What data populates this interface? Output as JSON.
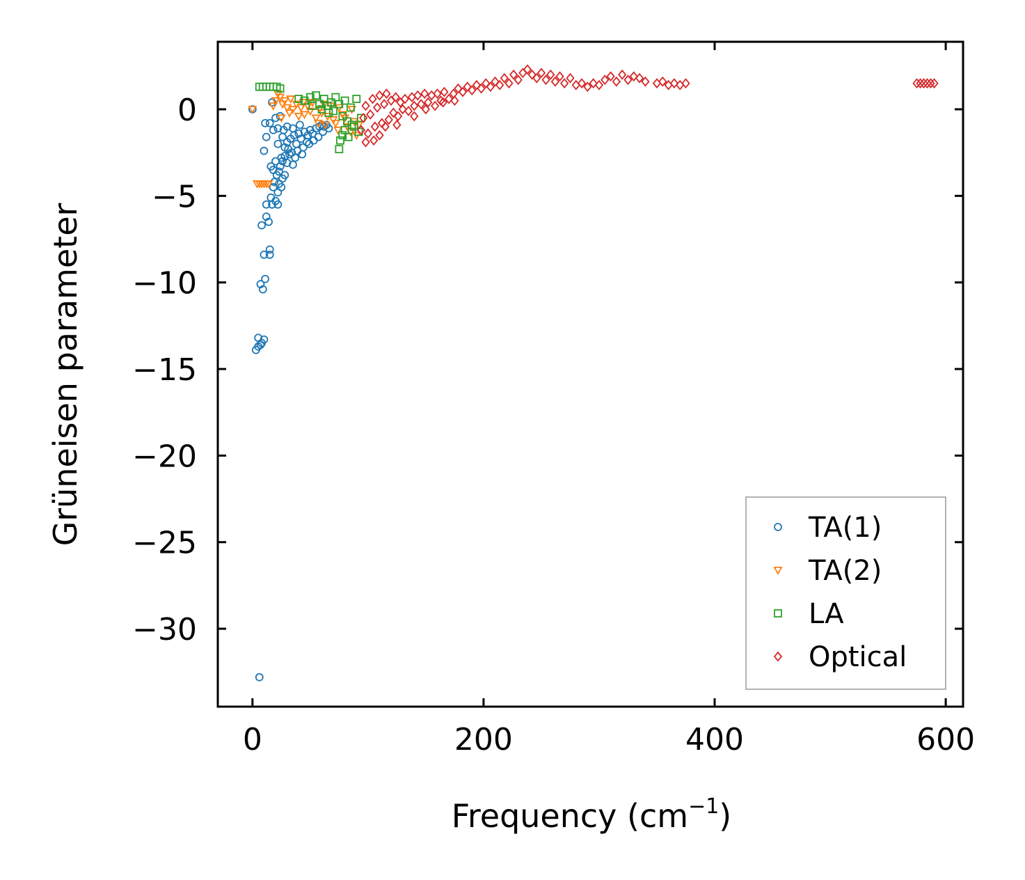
{
  "chart_data": {
    "type": "scatter",
    "title": "",
    "xlabel": "Frequency (cm",
    "xlabel_sup": "−1",
    "xlabel_suffix": ")",
    "ylabel": "Grüneisen parameter",
    "xlim": [
      -30,
      615
    ],
    "ylim": [
      -34.5,
      3.9
    ],
    "grid": false,
    "legend_position": "lower-right",
    "x_ticks": [
      {
        "value": 0,
        "label": "0"
      },
      {
        "value": 200,
        "label": "200"
      },
      {
        "value": 400,
        "label": "400"
      },
      {
        "value": 600,
        "label": "600"
      }
    ],
    "y_ticks": [
      {
        "value": 0,
        "label": "0"
      },
      {
        "value": -5,
        "label": "−5"
      },
      {
        "value": -10,
        "label": "−10"
      },
      {
        "value": -15,
        "label": "−15"
      },
      {
        "value": -20,
        "label": "−20"
      },
      {
        "value": -25,
        "label": "−25"
      },
      {
        "value": -30,
        "label": "−30"
      }
    ],
    "series": [
      {
        "name": "TA(1)",
        "marker": "circle",
        "color": "#1f77b4",
        "points": [
          [
            0,
            0
          ],
          [
            6,
            -32.8
          ],
          [
            3,
            -13.9
          ],
          [
            5,
            -13.7
          ],
          [
            7,
            -13.6
          ],
          [
            8,
            -13.5
          ],
          [
            10,
            -13.3
          ],
          [
            5,
            -13.2
          ],
          [
            7,
            -10.1
          ],
          [
            9,
            -10.4
          ],
          [
            11,
            -9.8
          ],
          [
            10,
            -8.4
          ],
          [
            15,
            -8.4
          ],
          [
            15,
            -8.1
          ],
          [
            8,
            -6.7
          ],
          [
            14,
            -6.5
          ],
          [
            12,
            -6.2
          ],
          [
            12,
            -5.5
          ],
          [
            17,
            -5.5
          ],
          [
            22,
            -5.5
          ],
          [
            20,
            -5.3
          ],
          [
            16,
            -5.1
          ],
          [
            22,
            -4.8
          ],
          [
            25,
            -4.5
          ],
          [
            18,
            -4.5
          ],
          [
            26,
            -4.0
          ],
          [
            28,
            -3.8
          ],
          [
            23,
            -3.6
          ],
          [
            18,
            -3.5
          ],
          [
            16,
            -3.3
          ],
          [
            20,
            -3.0
          ],
          [
            25,
            -2.8
          ],
          [
            30,
            -3.1
          ],
          [
            35,
            -3.2
          ],
          [
            32,
            -2.6
          ],
          [
            10,
            -2.4
          ],
          [
            22,
            -2.0
          ],
          [
            12,
            -1.6
          ],
          [
            15,
            -0.8
          ],
          [
            11,
            -0.8
          ],
          [
            17,
            0.4
          ],
          [
            24,
            -0.4
          ],
          [
            20,
            -0.5
          ],
          [
            18,
            -1.2
          ],
          [
            22,
            -1.1
          ],
          [
            26,
            -1.6
          ],
          [
            28,
            -2.2
          ],
          [
            30,
            -1.9
          ],
          [
            33,
            -1.7
          ],
          [
            36,
            -1.5
          ],
          [
            38,
            -2.0
          ],
          [
            40,
            -1.4
          ],
          [
            42,
            -1.7
          ],
          [
            45,
            -1.3
          ],
          [
            48,
            -1.5
          ],
          [
            50,
            -1.2
          ],
          [
            52,
            -1.4
          ],
          [
            55,
            -1.1
          ],
          [
            58,
            -1.0
          ],
          [
            60,
            -0.9
          ],
          [
            62,
            -1.0
          ],
          [
            64,
            -0.9
          ],
          [
            44,
            -2.2
          ],
          [
            47,
            -1.9
          ],
          [
            39,
            -2.4
          ],
          [
            34,
            -2.5
          ],
          [
            31,
            -2.3
          ],
          [
            28,
            -2.7
          ],
          [
            26,
            -3.0
          ],
          [
            24,
            -3.3
          ],
          [
            21,
            -3.8
          ],
          [
            19,
            -4.2
          ],
          [
            23,
            -4.3
          ],
          [
            27,
            -1.2
          ],
          [
            30,
            -1.0
          ],
          [
            35,
            -1.1
          ],
          [
            41,
            -0.9
          ],
          [
            53,
            -1.8
          ],
          [
            57,
            -1.6
          ],
          [
            61,
            -1.3
          ],
          [
            66,
            -1.1
          ],
          [
            49,
            -2.0
          ],
          [
            43,
            -2.6
          ],
          [
            37,
            -2.8
          ]
        ]
      },
      {
        "name": "TA(2)",
        "marker": "triangle-down",
        "color": "#ff7f0e",
        "points": [
          [
            0,
            0
          ],
          [
            4,
            -4.3
          ],
          [
            6,
            -4.3
          ],
          [
            8,
            -4.3
          ],
          [
            10,
            -4.3
          ],
          [
            12,
            -4.3
          ],
          [
            14,
            -4.3
          ],
          [
            22,
            0.9
          ],
          [
            24,
            0.7
          ],
          [
            20,
            0.5
          ],
          [
            18,
            0.2
          ],
          [
            26,
            0.3
          ],
          [
            28,
            0.5
          ],
          [
            30,
            0.1
          ],
          [
            32,
            -0.2
          ],
          [
            35,
            0.0
          ],
          [
            38,
            0.3
          ],
          [
            40,
            -0.4
          ],
          [
            42,
            0.1
          ],
          [
            45,
            -0.3
          ],
          [
            48,
            0.2
          ],
          [
            50,
            -0.1
          ],
          [
            52,
            0.4
          ],
          [
            55,
            -0.5
          ],
          [
            58,
            0.0
          ],
          [
            60,
            -0.2
          ],
          [
            62,
            0.3
          ],
          [
            65,
            -0.4
          ],
          [
            68,
            0.2
          ],
          [
            70,
            -0.6
          ],
          [
            72,
            -0.8
          ],
          [
            75,
            0.1
          ],
          [
            78,
            -0.3
          ],
          [
            80,
            -0.5
          ],
          [
            82,
            -1.0
          ],
          [
            85,
            -1.3
          ],
          [
            88,
            -0.7
          ],
          [
            90,
            -1.5
          ],
          [
            92,
            -0.9
          ],
          [
            25,
            -0.5
          ],
          [
            33,
            0.6
          ],
          [
            44,
            0.4
          ],
          [
            57,
            -0.8
          ],
          [
            63,
            -0.9
          ],
          [
            74,
            -1.2
          ],
          [
            86,
            0.0
          ]
        ]
      },
      {
        "name": "LA",
        "marker": "square",
        "color": "#2ca02c",
        "points": [
          [
            6,
            1.3
          ],
          [
            9,
            1.3
          ],
          [
            12,
            1.3
          ],
          [
            15,
            1.3
          ],
          [
            18,
            1.3
          ],
          [
            21,
            1.3
          ],
          [
            24,
            1.2
          ],
          [
            40,
            0.6
          ],
          [
            45,
            0.5
          ],
          [
            50,
            0.7
          ],
          [
            55,
            0.8
          ],
          [
            58,
            0.3
          ],
          [
            62,
            0.6
          ],
          [
            65,
            0.2
          ],
          [
            68,
            0.4
          ],
          [
            70,
            -0.1
          ],
          [
            72,
            0.7
          ],
          [
            75,
            0.3
          ],
          [
            78,
            -0.4
          ],
          [
            80,
            0.5
          ],
          [
            82,
            -0.7
          ],
          [
            85,
            0.1
          ],
          [
            88,
            -1.0
          ],
          [
            90,
            0.6
          ],
          [
            92,
            -1.3
          ],
          [
            94,
            -0.5
          ],
          [
            75,
            -2.3
          ],
          [
            76,
            -1.8
          ],
          [
            78,
            -1.5
          ],
          [
            80,
            -1.2
          ],
          [
            83,
            -1.6
          ],
          [
            86,
            -0.9
          ],
          [
            60,
            0.0
          ],
          [
            52,
            0.2
          ],
          [
            66,
            -0.2
          ]
        ]
      },
      {
        "name": "Optical",
        "marker": "diamond",
        "color": "#d62728",
        "points": [
          [
            94,
            -1.2
          ],
          [
            96,
            -0.5
          ],
          [
            98,
            0.2
          ],
          [
            100,
            -1.4
          ],
          [
            102,
            -0.3
          ],
          [
            104,
            0.6
          ],
          [
            106,
            -1.0
          ],
          [
            108,
            0.1
          ],
          [
            110,
            0.8
          ],
          [
            112,
            -0.8
          ],
          [
            114,
            0.3
          ],
          [
            116,
            0.9
          ],
          [
            118,
            -0.6
          ],
          [
            120,
            0.5
          ],
          [
            122,
            -0.2
          ],
          [
            124,
            0.7
          ],
          [
            126,
            -0.4
          ],
          [
            128,
            0.4
          ],
          [
            130,
            0.0
          ],
          [
            132,
            0.6
          ],
          [
            135,
            -0.1
          ],
          [
            138,
            0.7
          ],
          [
            140,
            0.2
          ],
          [
            143,
            0.8
          ],
          [
            146,
            0.3
          ],
          [
            149,
            0.9
          ],
          [
            152,
            0.4
          ],
          [
            155,
            0.8
          ],
          [
            158,
            0.2
          ],
          [
            160,
            0.9
          ],
          [
            163,
            0.5
          ],
          [
            166,
            1.0
          ],
          [
            170,
            0.6
          ],
          [
            174,
            0.9
          ],
          [
            178,
            1.2
          ],
          [
            182,
            1.0
          ],
          [
            186,
            1.3
          ],
          [
            190,
            1.1
          ],
          [
            194,
            1.4
          ],
          [
            198,
            1.2
          ],
          [
            202,
            1.5
          ],
          [
            206,
            1.3
          ],
          [
            210,
            1.6
          ],
          [
            214,
            1.4
          ],
          [
            218,
            1.8
          ],
          [
            222,
            1.5
          ],
          [
            226,
            2.0
          ],
          [
            230,
            1.7
          ],
          [
            234,
            2.1
          ],
          [
            238,
            2.3
          ],
          [
            242,
            2.0
          ],
          [
            246,
            1.8
          ],
          [
            250,
            2.1
          ],
          [
            254,
            1.7
          ],
          [
            258,
            2.0
          ],
          [
            262,
            1.6
          ],
          [
            266,
            1.9
          ],
          [
            270,
            1.5
          ],
          [
            275,
            1.8
          ],
          [
            280,
            1.4
          ],
          [
            285,
            1.5
          ],
          [
            290,
            1.3
          ],
          [
            295,
            1.5
          ],
          [
            300,
            1.4
          ],
          [
            305,
            1.7
          ],
          [
            310,
            1.9
          ],
          [
            315,
            1.6
          ],
          [
            320,
            2.0
          ],
          [
            325,
            1.7
          ],
          [
            330,
            1.9
          ],
          [
            335,
            1.8
          ],
          [
            340,
            1.6
          ],
          [
            350,
            1.5
          ],
          [
            355,
            1.6
          ],
          [
            360,
            1.4
          ],
          [
            365,
            1.5
          ],
          [
            370,
            1.4
          ],
          [
            375,
            1.5
          ],
          [
            575,
            1.5
          ],
          [
            578,
            1.5
          ],
          [
            581,
            1.5
          ],
          [
            584,
            1.5
          ],
          [
            587,
            1.5
          ],
          [
            590,
            1.5
          ],
          [
            110,
            -1.5
          ],
          [
            105,
            -1.8
          ],
          [
            98,
            -1.9
          ],
          [
            115,
            -1.0
          ],
          [
            125,
            -0.9
          ],
          [
            140,
            -0.4
          ],
          [
            150,
            0.0
          ],
          [
            165,
            0.4
          ],
          [
            175,
            0.5
          ]
        ]
      }
    ]
  }
}
